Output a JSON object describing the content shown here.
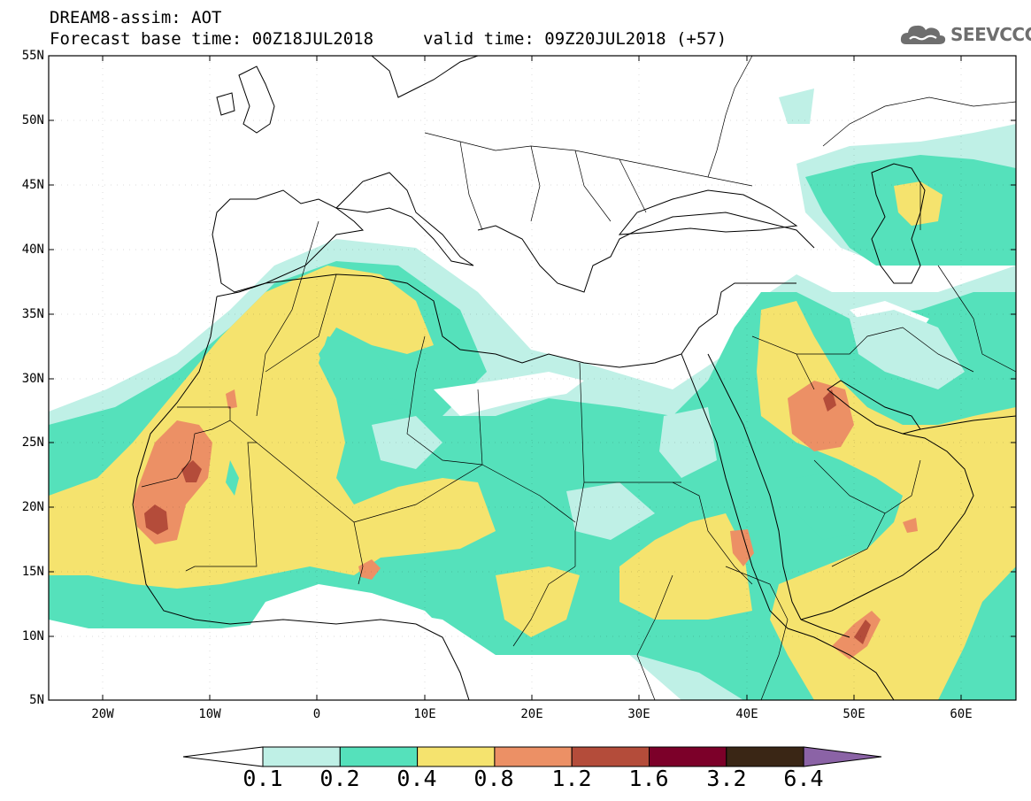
{
  "header": {
    "title": "DREAM8-assim: AOT",
    "base_time": "Forecast base time: 00Z18JUL2018",
    "valid_time": "valid time: 09Z20JUL2018 (+57)"
  },
  "logo": {
    "text": "SEEVCCC",
    "icon": "cloud-icon"
  },
  "map": {
    "lat_labels": [
      "55N",
      "50N",
      "45N",
      "40N",
      "35N",
      "30N",
      "25N",
      "20N",
      "15N",
      "10N",
      "5N"
    ],
    "lon_labels": [
      "20W",
      "10W",
      "0",
      "10E",
      "20E",
      "30E",
      "40E",
      "50E",
      "60E"
    ],
    "extent": {
      "lon": [
        -25,
        65
      ],
      "lat": [
        5,
        55
      ]
    }
  },
  "colorbar": {
    "labels": [
      "0.1",
      "0.2",
      "0.4",
      "0.8",
      "1.2",
      "1.6",
      "3.2",
      "6.4"
    ],
    "colors": [
      "#ffffff",
      "#bff0e6",
      "#55e1bb",
      "#f5e36e",
      "#ec9065",
      "#b44c3a",
      "#7c0029",
      "#3a2615",
      "#8b63a6"
    ]
  }
}
